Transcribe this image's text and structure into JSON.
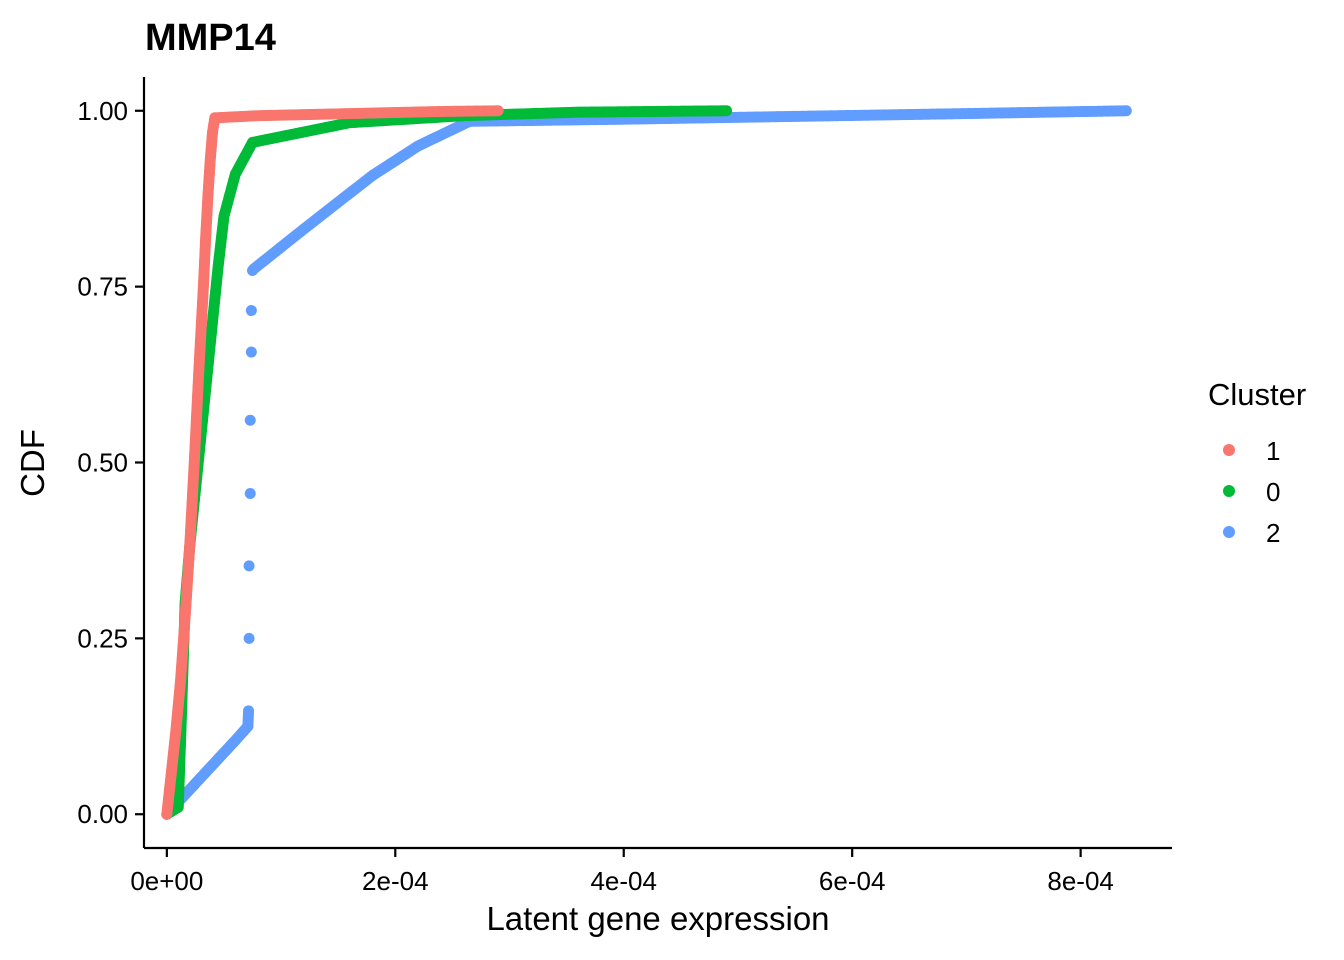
{
  "chart_data": {
    "type": "scatter",
    "title": "MMP14",
    "xlabel": "Latent gene expression",
    "ylabel": "CDF",
    "xlim": [
      -2e-05,
      0.00088
    ],
    "ylim": [
      -0.048,
      1.048
    ],
    "x_ticks": [
      {
        "value": 0,
        "label": "0e+00"
      },
      {
        "value": 0.0002,
        "label": "2e-04"
      },
      {
        "value": 0.0004,
        "label": "4e-04"
      },
      {
        "value": 0.0006,
        "label": "6e-04"
      },
      {
        "value": 0.0008,
        "label": "8e-04"
      }
    ],
    "y_ticks": [
      {
        "value": 0,
        "label": "0.00"
      },
      {
        "value": 0.25,
        "label": "0.25"
      },
      {
        "value": 0.5,
        "label": "0.50"
      },
      {
        "value": 0.75,
        "label": "0.75"
      },
      {
        "value": 1.0,
        "label": "1.00"
      }
    ],
    "grid": false,
    "legend": {
      "title": "Cluster",
      "position": "right"
    },
    "series": [
      {
        "name": "1",
        "color": "#F8766D",
        "x": [
          0,
          4e-06,
          8e-06,
          1.2e-05,
          1.6e-05,
          2e-05,
          2.4e-05,
          2.8e-05,
          3.2e-05,
          3.4e-05,
          3.6e-05,
          3.8e-05,
          4e-05,
          4.2e-05,
          8e-05,
          0.00016,
          0.00024,
          0.00029
        ],
        "y": [
          0,
          0.06,
          0.12,
          0.19,
          0.28,
          0.38,
          0.5,
          0.63,
          0.75,
          0.82,
          0.88,
          0.93,
          0.97,
          0.99,
          0.993,
          0.996,
          0.999,
          1.0
        ]
      },
      {
        "name": "0",
        "color": "#00BA38",
        "x": [
          0,
          1e-05,
          1.3e-05,
          1.6e-05,
          2e-05,
          2.5e-05,
          3e-05,
          3.5e-05,
          4e-05,
          4.5e-05,
          5e-05,
          5.5e-05,
          6e-05,
          7e-05,
          7.5e-05,
          0.00016,
          0.00026,
          0.00036,
          0.00049
        ],
        "y": [
          0,
          0.01,
          0.15,
          0.3,
          0.38,
          0.46,
          0.54,
          0.62,
          0.7,
          0.78,
          0.85,
          0.88,
          0.91,
          0.94,
          0.955,
          0.983,
          0.993,
          0.998,
          1.0
        ]
      },
      {
        "name": "2",
        "color": "#619CFF",
        "x": [
          0,
          2e-05,
          4e-05,
          6e-05,
          7.1e-05,
          7.15e-05,
          7.2e-05,
          7.2e-05,
          7.3e-05,
          7.3e-05,
          7.4e-05,
          7.4e-05,
          7.5e-05,
          7.6e-05,
          0.00012,
          0.00018,
          0.00022,
          0.000265,
          0.0004,
          0.00055,
          0.0007,
          0.00084
        ],
        "y": [
          0,
          0.035,
          0.07,
          0.105,
          0.125,
          0.147,
          0.25,
          0.353,
          0.456,
          0.56,
          0.657,
          0.716,
          0.773,
          0.775,
          0.832,
          0.908,
          0.95,
          0.985,
          0.988,
          0.992,
          0.996,
          1.0
        ]
      }
    ]
  }
}
